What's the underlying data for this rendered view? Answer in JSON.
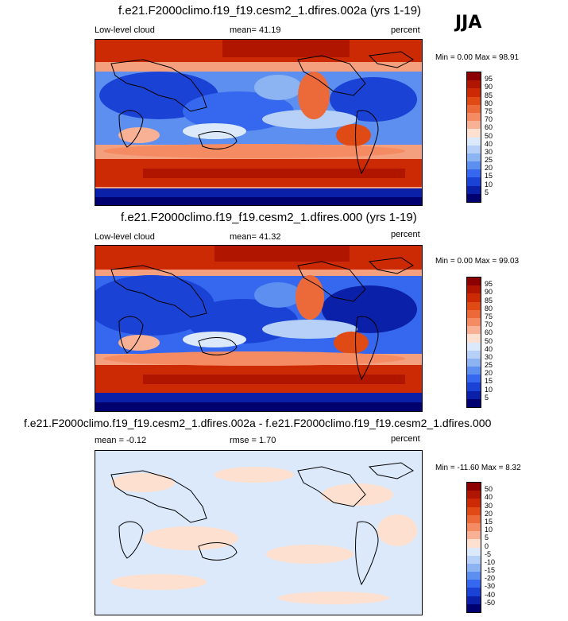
{
  "season": "JJA",
  "panels": [
    {
      "title": "f.e21.F2000climo.f19_f19.cesm2_1.dfires.002a (yrs 1-19)",
      "left_label": "Low-level cloud",
      "center_label": "mean=  41.19",
      "right_label": "percent",
      "stats": "Min =   0.00 Max =  98.91",
      "kind": "abs"
    },
    {
      "title": "f.e21.F2000climo.f19_f19.cesm2_1.dfires.000 (yrs 1-19)",
      "left_label": "Low-level cloud",
      "center_label": "mean=  41.32",
      "right_label": "percent",
      "stats": "Min =   0.00 Max =  99.03",
      "kind": "abs"
    },
    {
      "title": "f.e21.F2000climo.f19_f19.cesm2_1.dfires.002a - f.e21.F2000climo.f19_f19.cesm2_1.dfires.000",
      "left_label": "mean =  -0.12",
      "center_label": "rmse =   1.70",
      "right_label": "percent",
      "stats": "Min = -11.60 Max =   8.32",
      "kind": "diff"
    }
  ],
  "colorbar_abs": {
    "labels": [
      "95",
      "90",
      "85",
      "80",
      "75",
      "70",
      "60",
      "50",
      "40",
      "30",
      "25",
      "20",
      "15",
      "10",
      "5"
    ],
    "colors": [
      "#8c0000",
      "#b01500",
      "#cc2a05",
      "#e04a14",
      "#ec6a3a",
      "#f48b62",
      "#f9b195",
      "#fde0cf",
      "#dbe9fb",
      "#b6d0f7",
      "#8cb3f2",
      "#5c8ff0",
      "#3568ee",
      "#1a43d6",
      "#0a20a8",
      "#00006e"
    ]
  },
  "colorbar_diff": {
    "labels": [
      "50",
      "40",
      "30",
      "20",
      "15",
      "10",
      "5",
      "0",
      "-5",
      "-10",
      "-15",
      "-20",
      "-30",
      "-40",
      "-50"
    ],
    "colors": [
      "#8c0000",
      "#b01500",
      "#cc2a05",
      "#e04a14",
      "#ec6a3a",
      "#f48b62",
      "#f9b195",
      "#fde0cf",
      "#dbe9fb",
      "#b6d0f7",
      "#8cb3f2",
      "#5c8ff0",
      "#3568ee",
      "#1a43d6",
      "#0a20a8",
      "#00006e"
    ]
  }
}
